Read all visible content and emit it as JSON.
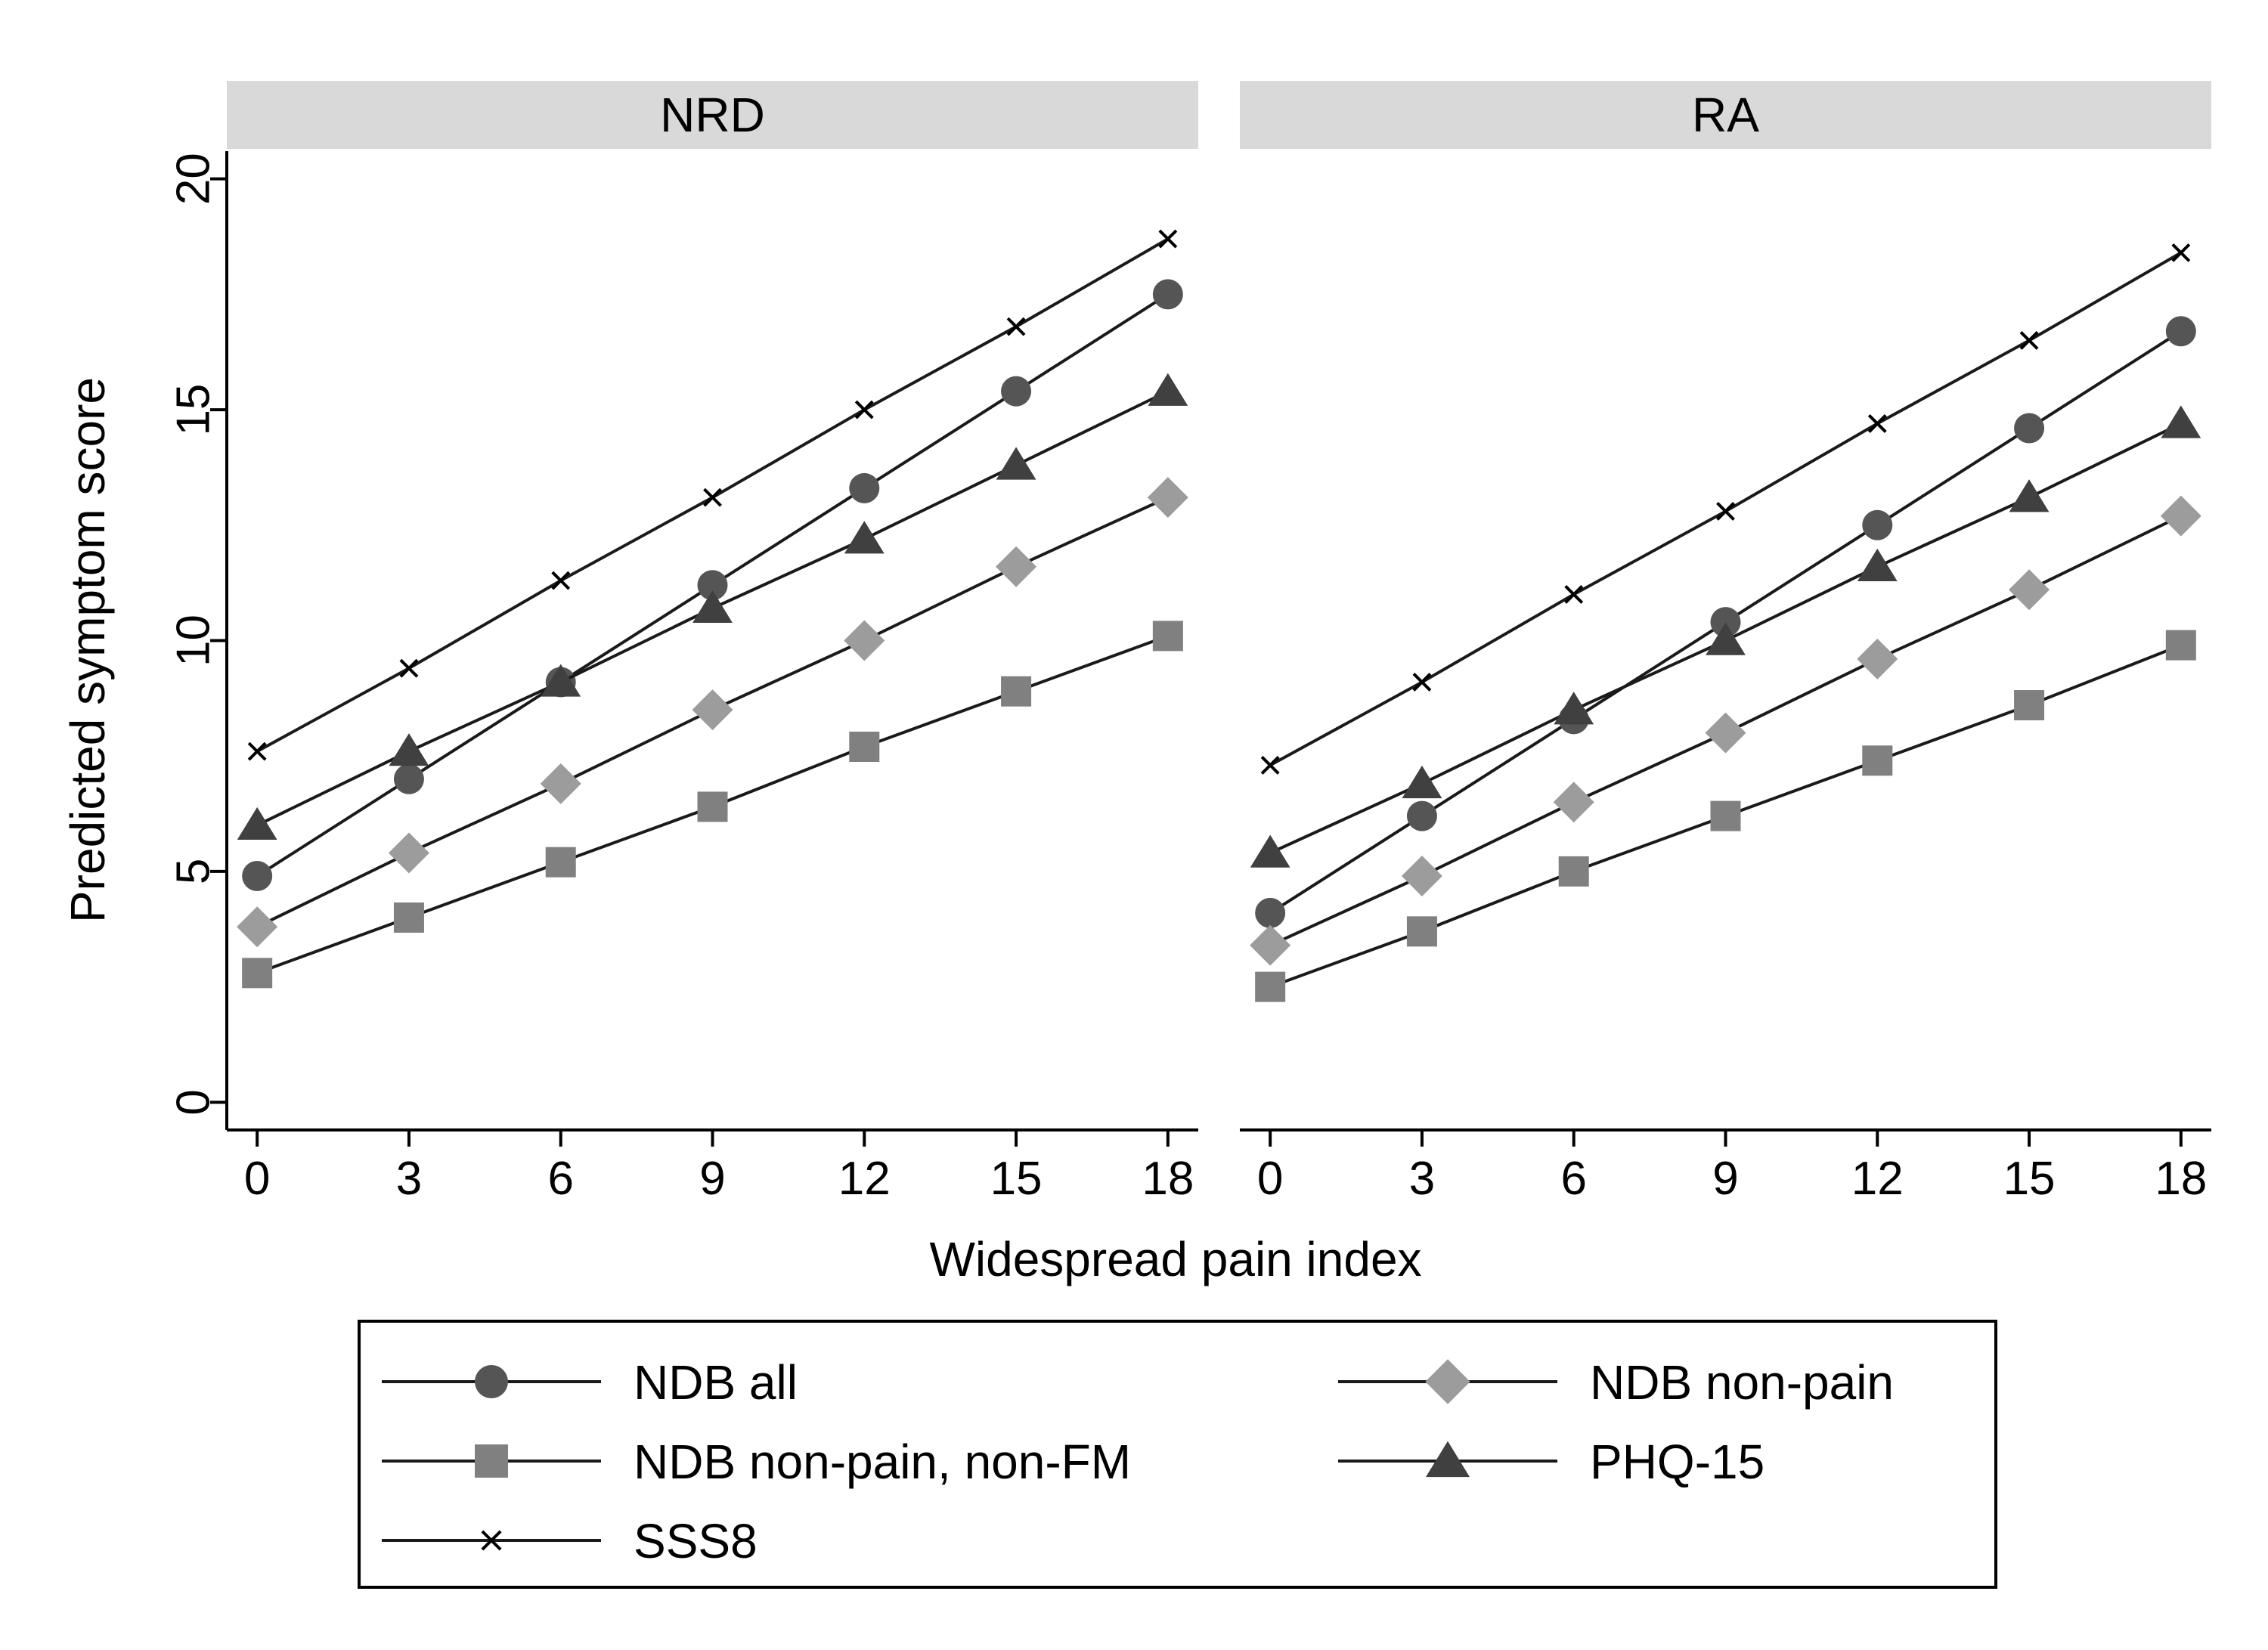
{
  "chart_data": {
    "type": "line",
    "xlabel": "Widespread pain index",
    "ylabel": "Predicted symptom score",
    "x": [
      0,
      3,
      6,
      9,
      12,
      15,
      18
    ],
    "xlim": [
      -0.6,
      18.6
    ],
    "ylim": [
      -0.6,
      20.6
    ],
    "xticks": [
      0,
      3,
      6,
      9,
      12,
      15,
      18
    ],
    "yticks": [
      0,
      5,
      10,
      15,
      20
    ],
    "grid": false,
    "legend_position": "bottom",
    "panels": [
      {
        "label": "NRD",
        "series": [
          {
            "name": "NDB all",
            "marker": "circle",
            "values": [
              4.9,
              7.0,
              9.1,
              11.2,
              13.3,
              15.4,
              17.5
            ]
          },
          {
            "name": "NDB non-pain",
            "marker": "diamond",
            "values": [
              3.8,
              5.4,
              6.9,
              8.5,
              10.0,
              11.6,
              13.1
            ]
          },
          {
            "name": "NDB non-pain, non-FM",
            "marker": "square",
            "values": [
              2.8,
              4.0,
              5.2,
              6.4,
              7.7,
              8.9,
              10.1
            ]
          },
          {
            "name": "PHQ-15",
            "marker": "triangle",
            "values": [
              6.0,
              7.6,
              9.1,
              10.7,
              12.2,
              13.8,
              15.4
            ]
          },
          {
            "name": "SSS8",
            "marker": "x",
            "values": [
              7.6,
              9.4,
              11.3,
              13.1,
              15.0,
              16.8,
              18.7
            ]
          }
        ]
      },
      {
        "label": "RA",
        "series": [
          {
            "name": "NDB all",
            "marker": "circle",
            "values": [
              4.1,
              6.2,
              8.3,
              10.4,
              12.5,
              14.6,
              16.7
            ]
          },
          {
            "name": "NDB non-pain",
            "marker": "diamond",
            "values": [
              3.4,
              4.9,
              6.5,
              8.0,
              9.6,
              11.1,
              12.7
            ]
          },
          {
            "name": "NDB non-pain, non-FM",
            "marker": "square",
            "values": [
              2.5,
              3.7,
              5.0,
              6.2,
              7.4,
              8.6,
              9.9
            ]
          },
          {
            "name": "PHQ-15",
            "marker": "triangle",
            "values": [
              5.4,
              6.9,
              8.5,
              10.0,
              11.6,
              13.1,
              14.7
            ]
          },
          {
            "name": "SSS8",
            "marker": "x",
            "values": [
              7.3,
              9.1,
              11.0,
              12.8,
              14.7,
              16.5,
              18.4
            ]
          }
        ]
      }
    ],
    "legend": [
      {
        "name": "NDB all",
        "marker": "circle"
      },
      {
        "name": "NDB non-pain",
        "marker": "diamond"
      },
      {
        "name": "NDB non-pain, non-FM",
        "marker": "square"
      },
      {
        "name": "PHQ-15",
        "marker": "triangle"
      },
      {
        "name": "SSS8",
        "marker": "x"
      }
    ],
    "colors": {
      "line": "#1a1a1a",
      "circle": "#555555",
      "diamond": "#9c9c9c",
      "square": "#808080",
      "triangle": "#404040",
      "x": "#000000",
      "strip": "#d9d9d9",
      "axis": "#000000"
    }
  }
}
